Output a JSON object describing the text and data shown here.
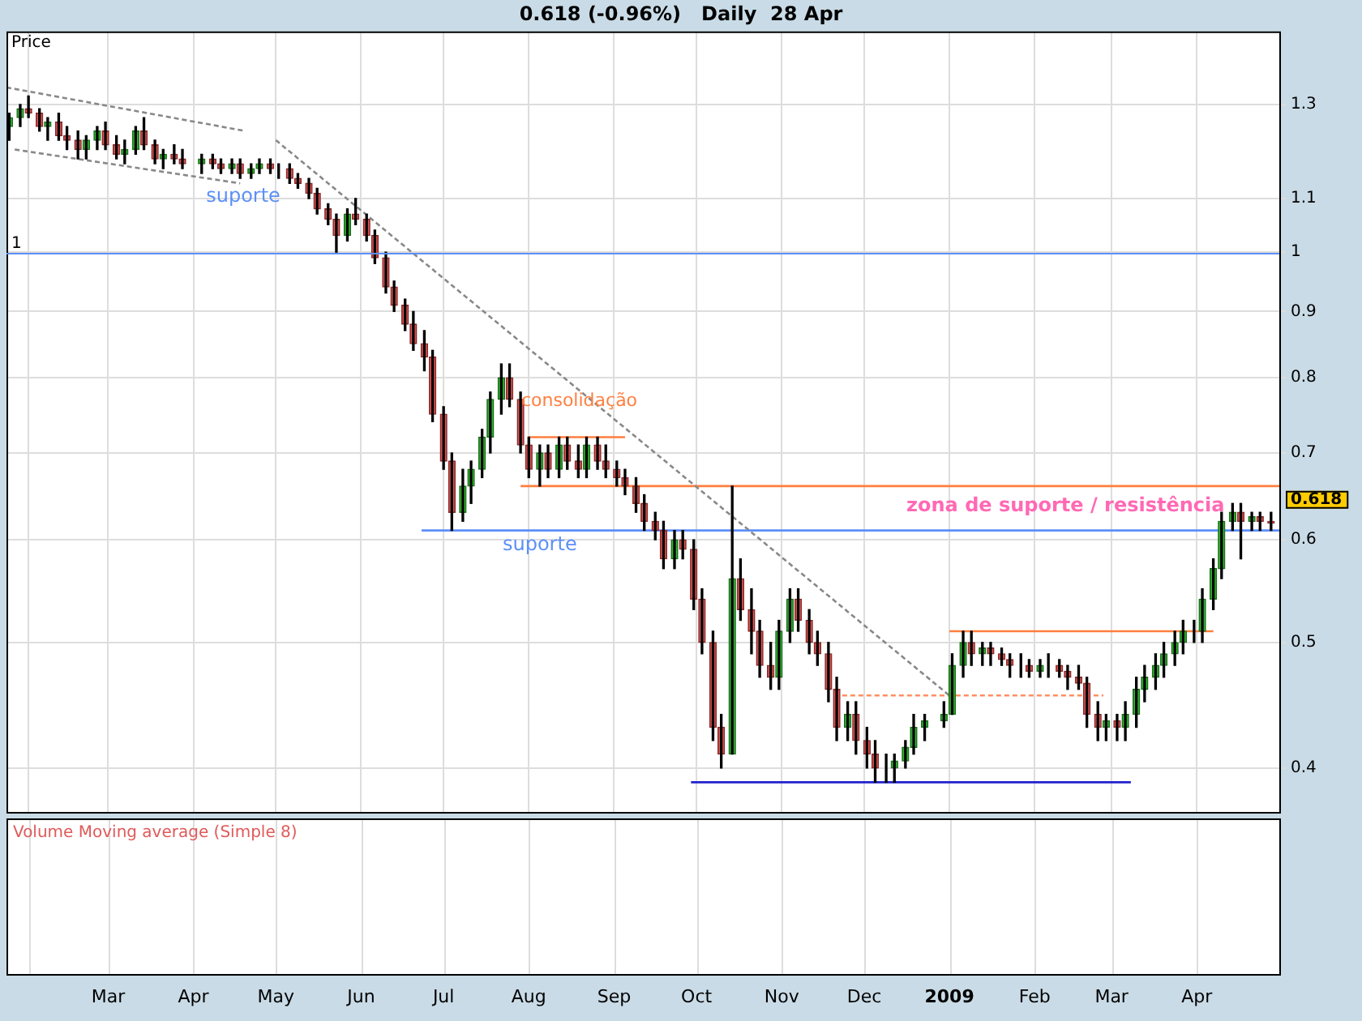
{
  "chart_data": {
    "type": "candlestick",
    "title": "0.618 (-0.96%)   Daily  28 Apr",
    "y2label": "Price",
    "log": "y2",
    "grid": true,
    "legend": false,
    "xlim": [
      "2008-01-24",
      "2009-05-01"
    ],
    "xticks": [
      {
        "value": "2008-02-01",
        "label": null
      },
      {
        "value": "2008-03-01",
        "label": "Mar"
      },
      {
        "value": "2008-04-01",
        "label": "Apr"
      },
      {
        "value": "2008-05-01",
        "label": "May"
      },
      {
        "value": "2008-06-01",
        "label": "Jun"
      },
      {
        "value": "2008-07-01",
        "label": "Jul"
      },
      {
        "value": "2008-08-01",
        "label": "Aug"
      },
      {
        "value": "2008-09-01",
        "label": "Sep"
      },
      {
        "value": "2008-10-01",
        "label": "Oct"
      },
      {
        "value": "2008-11-01",
        "label": "Nov"
      },
      {
        "value": "2008-12-01",
        "label": "Dec"
      },
      {
        "value": "2009-01-01",
        "label": "2009"
      },
      {
        "value": "2009-02-01",
        "label": "Feb"
      },
      {
        "value": "2009-03-01",
        "label": "Mar"
      },
      {
        "value": "2009-04-01",
        "label": "Apr"
      }
    ],
    "y2lim": [
      0.37,
      1.48
    ],
    "y2ticks": [
      0.4,
      0.5,
      0.6,
      0.7,
      0.8,
      0.9,
      1,
      1.1,
      1.3
    ],
    "ref_lines": [
      {
        "axis": "y2",
        "value": 1,
        "label": "1",
        "color": "#5b8ff9"
      }
    ],
    "annotations": [
      "suporte",
      "consolidação",
      "suporte",
      "zona de suporte / resistência",
      "0.618",
      "Volume Moving average (Simple 8)"
    ],
    "series": [
      {
        "type": "candlestick",
        "axis": "y2",
        "x": [
          "2008-01-25",
          "2008-01-29",
          "2008-02-01",
          "2008-02-05",
          "2008-02-08",
          "2008-02-12",
          "2008-02-15",
          "2008-02-19",
          "2008-02-22",
          "2008-02-26",
          "2008-02-29",
          "2008-03-04",
          "2008-03-07",
          "2008-03-11",
          "2008-03-14",
          "2008-03-18",
          "2008-03-21",
          "2008-03-25",
          "2008-03-28",
          "2008-04-04",
          "2008-04-08",
          "2008-04-11",
          "2008-04-15",
          "2008-04-18",
          "2008-04-22",
          "2008-04-25",
          "2008-04-29",
          "2008-05-02",
          "2008-05-06",
          "2008-05-09",
          "2008-05-13",
          "2008-05-16",
          "2008-05-20",
          "2008-05-23",
          "2008-05-27",
          "2008-05-30",
          "2008-06-03",
          "2008-06-06",
          "2008-06-10",
          "2008-06-13",
          "2008-06-17",
          "2008-06-20",
          "2008-06-24",
          "2008-06-27",
          "2008-07-01",
          "2008-07-04",
          "2008-07-08",
          "2008-07-11",
          "2008-07-15",
          "2008-07-18",
          "2008-07-22",
          "2008-07-25",
          "2008-07-29",
          "2008-08-01",
          "2008-08-05",
          "2008-08-08",
          "2008-08-12",
          "2008-08-15",
          "2008-08-19",
          "2008-08-22",
          "2008-08-26",
          "2008-08-29",
          "2008-09-02",
          "2008-09-05",
          "2008-09-09",
          "2008-09-12",
          "2008-09-16",
          "2008-09-19",
          "2008-09-23",
          "2008-09-26",
          "2008-09-30",
          "2008-10-03",
          "2008-10-07",
          "2008-10-10",
          "2008-10-14",
          "2008-10-17",
          "2008-10-21",
          "2008-10-24",
          "2008-10-28",
          "2008-10-31",
          "2008-11-04",
          "2008-11-07",
          "2008-11-11",
          "2008-11-14",
          "2008-11-18",
          "2008-11-21",
          "2008-11-25",
          "2008-11-28",
          "2008-12-02",
          "2008-12-05",
          "2008-12-09",
          "2008-12-12",
          "2008-12-16",
          "2008-12-19",
          "2008-12-23",
          "2008-12-30",
          "2009-01-02",
          "2009-01-06",
          "2009-01-09",
          "2009-01-13",
          "2009-01-16",
          "2009-01-20",
          "2009-01-23",
          "2009-01-27",
          "2009-01-30",
          "2009-02-03",
          "2009-02-06",
          "2009-02-10",
          "2009-02-13",
          "2009-02-17",
          "2009-02-20",
          "2009-02-24",
          "2009-02-27",
          "2009-03-03",
          "2009-03-06",
          "2009-03-10",
          "2009-03-13",
          "2009-03-17",
          "2009-03-20",
          "2009-03-24",
          "2009-03-27",
          "2009-03-31",
          "2009-04-03",
          "2009-04-07",
          "2009-04-10",
          "2009-04-14",
          "2009-04-17",
          "2009-04-21",
          "2009-04-24",
          "2009-04-28"
        ],
        "ohlc": [
          [
            1.25,
            1.28,
            1.22,
            1.27
          ],
          [
            1.27,
            1.3,
            1.25,
            1.29
          ],
          [
            1.29,
            1.32,
            1.27,
            1.28
          ],
          [
            1.28,
            1.29,
            1.24,
            1.25
          ],
          [
            1.25,
            1.27,
            1.22,
            1.26
          ],
          [
            1.26,
            1.28,
            1.22,
            1.23
          ],
          [
            1.23,
            1.25,
            1.2,
            1.22
          ],
          [
            1.22,
            1.24,
            1.18,
            1.2
          ],
          [
            1.2,
            1.23,
            1.18,
            1.22
          ],
          [
            1.22,
            1.25,
            1.2,
            1.24
          ],
          [
            1.24,
            1.26,
            1.2,
            1.21
          ],
          [
            1.21,
            1.23,
            1.18,
            1.19
          ],
          [
            1.19,
            1.22,
            1.17,
            1.2
          ],
          [
            1.2,
            1.25,
            1.19,
            1.24
          ],
          [
            1.24,
            1.27,
            1.2,
            1.21
          ],
          [
            1.21,
            1.22,
            1.17,
            1.18
          ],
          [
            1.18,
            1.2,
            1.16,
            1.19
          ],
          [
            1.19,
            1.21,
            1.17,
            1.18
          ],
          [
            1.18,
            1.2,
            1.16,
            1.17
          ],
          [
            1.17,
            1.19,
            1.15,
            1.18
          ],
          [
            1.18,
            1.19,
            1.16,
            1.17
          ],
          [
            1.17,
            1.18,
            1.15,
            1.16
          ],
          [
            1.16,
            1.18,
            1.15,
            1.17
          ],
          [
            1.17,
            1.18,
            1.14,
            1.15
          ],
          [
            1.15,
            1.17,
            1.14,
            1.16
          ],
          [
            1.16,
            1.18,
            1.15,
            1.17
          ],
          [
            1.17,
            1.18,
            1.15,
            1.16
          ],
          [
            1.16,
            1.17,
            1.14,
            1.16
          ],
          [
            1.16,
            1.17,
            1.13,
            1.14
          ],
          [
            1.14,
            1.15,
            1.12,
            1.13
          ],
          [
            1.13,
            1.14,
            1.1,
            1.11
          ],
          [
            1.11,
            1.12,
            1.07,
            1.08
          ],
          [
            1.08,
            1.09,
            1.05,
            1.06
          ],
          [
            1.06,
            1.07,
            1,
            1.03
          ],
          [
            1.03,
            1.08,
            1.02,
            1.07
          ],
          [
            1.07,
            1.1,
            1.05,
            1.06
          ],
          [
            1.06,
            1.07,
            1.02,
            1.03
          ],
          [
            1.03,
            1.04,
            0.98,
            0.99
          ],
          [
            0.99,
            1,
            0.93,
            0.94
          ],
          [
            0.94,
            0.95,
            0.9,
            0.91
          ],
          [
            0.91,
            0.92,
            0.87,
            0.88
          ],
          [
            0.88,
            0.9,
            0.84,
            0.85
          ],
          [
            0.85,
            0.87,
            0.81,
            0.83
          ],
          [
            0.83,
            0.84,
            0.74,
            0.75
          ],
          [
            0.75,
            0.76,
            0.68,
            0.69
          ],
          [
            0.69,
            0.7,
            0.61,
            0.63
          ],
          [
            0.63,
            0.68,
            0.62,
            0.66
          ],
          [
            0.66,
            0.69,
            0.64,
            0.68
          ],
          [
            0.68,
            0.73,
            0.67,
            0.72
          ],
          [
            0.72,
            0.78,
            0.7,
            0.77
          ],
          [
            0.77,
            0.82,
            0.75,
            0.8
          ],
          [
            0.8,
            0.82,
            0.76,
            0.77
          ],
          [
            0.77,
            0.78,
            0.7,
            0.71
          ],
          [
            0.71,
            0.72,
            0.67,
            0.68
          ],
          [
            0.68,
            0.71,
            0.66,
            0.7
          ],
          [
            0.7,
            0.71,
            0.67,
            0.68
          ],
          [
            0.68,
            0.72,
            0.67,
            0.71
          ],
          [
            0.71,
            0.72,
            0.68,
            0.69
          ],
          [
            0.69,
            0.71,
            0.67,
            0.68
          ],
          [
            0.68,
            0.72,
            0.67,
            0.71
          ],
          [
            0.71,
            0.72,
            0.68,
            0.69
          ],
          [
            0.69,
            0.71,
            0.67,
            0.68
          ],
          [
            0.68,
            0.69,
            0.66,
            0.67
          ],
          [
            0.67,
            0.68,
            0.65,
            0.66
          ],
          [
            0.66,
            0.67,
            0.63,
            0.64
          ],
          [
            0.64,
            0.65,
            0.61,
            0.62
          ],
          [
            0.62,
            0.63,
            0.6,
            0.61
          ],
          [
            0.61,
            0.62,
            0.57,
            0.58
          ],
          [
            0.58,
            0.61,
            0.57,
            0.6
          ],
          [
            0.6,
            0.61,
            0.58,
            0.59
          ],
          [
            0.59,
            0.6,
            0.53,
            0.54
          ],
          [
            0.54,
            0.55,
            0.49,
            0.5
          ],
          [
            0.5,
            0.51,
            0.42,
            0.43
          ],
          [
            0.43,
            0.44,
            0.4,
            0.41
          ],
          [
            0.41,
            0.66,
            0.41,
            0.56
          ],
          [
            0.56,
            0.58,
            0.52,
            0.53
          ],
          [
            0.53,
            0.55,
            0.49,
            0.51
          ],
          [
            0.51,
            0.52,
            0.47,
            0.48
          ],
          [
            0.48,
            0.5,
            0.46,
            0.47
          ],
          [
            0.47,
            0.52,
            0.46,
            0.51
          ],
          [
            0.51,
            0.55,
            0.5,
            0.54
          ],
          [
            0.54,
            0.55,
            0.51,
            0.52
          ],
          [
            0.52,
            0.53,
            0.49,
            0.5
          ],
          [
            0.5,
            0.51,
            0.48,
            0.49
          ],
          [
            0.49,
            0.5,
            0.45,
            0.46
          ],
          [
            0.46,
            0.47,
            0.42,
            0.43
          ],
          [
            0.43,
            0.45,
            0.42,
            0.44
          ],
          [
            0.44,
            0.45,
            0.41,
            0.42
          ],
          [
            0.42,
            0.43,
            0.4,
            0.41
          ],
          [
            0.41,
            0.42,
            0.39,
            0.4
          ],
          [
            0.4,
            0.41,
            0.39,
            0.4
          ],
          [
            0.4,
            0.41,
            0.39,
            0.405
          ],
          [
            0.405,
            0.42,
            0.4,
            0.415
          ],
          [
            0.415,
            0.44,
            0.41,
            0.43
          ],
          [
            0.43,
            0.44,
            0.42,
            0.435
          ],
          [
            0.435,
            0.45,
            0.43,
            0.44
          ],
          [
            0.44,
            0.49,
            0.44,
            0.48
          ],
          [
            0.48,
            0.51,
            0.47,
            0.5
          ],
          [
            0.5,
            0.51,
            0.48,
            0.49
          ],
          [
            0.49,
            0.5,
            0.48,
            0.495
          ],
          [
            0.495,
            0.5,
            0.48,
            0.49
          ],
          [
            0.49,
            0.495,
            0.48,
            0.485
          ],
          [
            0.485,
            0.49,
            0.47,
            0.48
          ],
          [
            0.48,
            0.49,
            0.47,
            0.48
          ],
          [
            0.48,
            0.485,
            0.47,
            0.475
          ],
          [
            0.475,
            0.485,
            0.47,
            0.48
          ],
          [
            0.48,
            0.49,
            0.47,
            0.48
          ],
          [
            0.48,
            0.485,
            0.47,
            0.475
          ],
          [
            0.475,
            0.48,
            0.46,
            0.47
          ],
          [
            0.47,
            0.48,
            0.46,
            0.465
          ],
          [
            0.465,
            0.47,
            0.43,
            0.44
          ],
          [
            0.44,
            0.45,
            0.42,
            0.43
          ],
          [
            0.43,
            0.44,
            0.42,
            0.435
          ],
          [
            0.435,
            0.44,
            0.42,
            0.43
          ],
          [
            0.43,
            0.45,
            0.42,
            0.44
          ],
          [
            0.44,
            0.47,
            0.43,
            0.46
          ],
          [
            0.46,
            0.48,
            0.45,
            0.47
          ],
          [
            0.47,
            0.49,
            0.46,
            0.48
          ],
          [
            0.48,
            0.5,
            0.47,
            0.49
          ],
          [
            0.49,
            0.51,
            0.48,
            0.5
          ],
          [
            0.5,
            0.52,
            0.49,
            0.51
          ],
          [
            0.51,
            0.52,
            0.5,
            0.51
          ],
          [
            0.51,
            0.55,
            0.5,
            0.54
          ],
          [
            0.54,
            0.58,
            0.53,
            0.57
          ],
          [
            0.57,
            0.63,
            0.56,
            0.62
          ],
          [
            0.62,
            0.64,
            0.61,
            0.63
          ],
          [
            0.63,
            0.64,
            0.58,
            0.62
          ],
          [
            0.62,
            0.63,
            0.61,
            0.625
          ],
          [
            0.625,
            0.63,
            0.61,
            0.62
          ],
          [
            0.62,
            0.63,
            0.61,
            0.618
          ]
        ]
      },
      {
        "type": "line",
        "x": [
          "2008-01-24",
          "2008-04-20"
        ],
        "axis": "y2",
        "values": [
          1.34,
          1.24
        ],
        "color": "#888888",
        "line_style": "dashed"
      },
      {
        "type": "line",
        "x": [
          "2008-01-27",
          "2008-04-18"
        ],
        "axis": "y2",
        "values": [
          1.2,
          1.13
        ],
        "color": "#888888",
        "line_style": "dashed"
      },
      {
        "type": "line",
        "x": [
          "2008-05-01",
          "2009-01-01"
        ],
        "axis": "y2",
        "values": [
          1.22,
          0.455
        ],
        "color": "#888888",
        "line_style": "dashed"
      },
      {
        "type": "line",
        "x": [
          "2008-08-01",
          "2008-09-05"
        ],
        "axis": "y2",
        "values": [
          0.72,
          0.72
        ],
        "color": "#ff7f3f",
        "line_style": "solid"
      },
      {
        "type": "line",
        "x": [
          "2008-07-29",
          "2009-05-01"
        ],
        "axis": "y2",
        "values": [
          0.66,
          0.66
        ],
        "color": "#ff7f3f",
        "line_style": "solid"
      },
      {
        "type": "line",
        "x": [
          "2008-06-23",
          "2009-05-01"
        ],
        "axis": "y2",
        "values": [
          0.61,
          0.61
        ],
        "color": "#5b8ff9",
        "line_style": "solid"
      },
      {
        "type": "line",
        "x": [
          "2008-09-29",
          "2009-03-08"
        ],
        "axis": "y2",
        "values": [
          0.39,
          0.39
        ],
        "color": "#2222cc",
        "line_style": "solid"
      },
      {
        "type": "line",
        "x": [
          "2009-01-01",
          "2009-04-07"
        ],
        "axis": "y2",
        "values": [
          0.51,
          0.51
        ],
        "color": "#ff7f3f",
        "line_style": "solid"
      },
      {
        "type": "line",
        "x": [
          "2008-11-23",
          "2009-02-26"
        ],
        "axis": "y2",
        "values": [
          0.455,
          0.455
        ],
        "color": "#ff9060",
        "line_style": "dashed"
      }
    ]
  }
}
